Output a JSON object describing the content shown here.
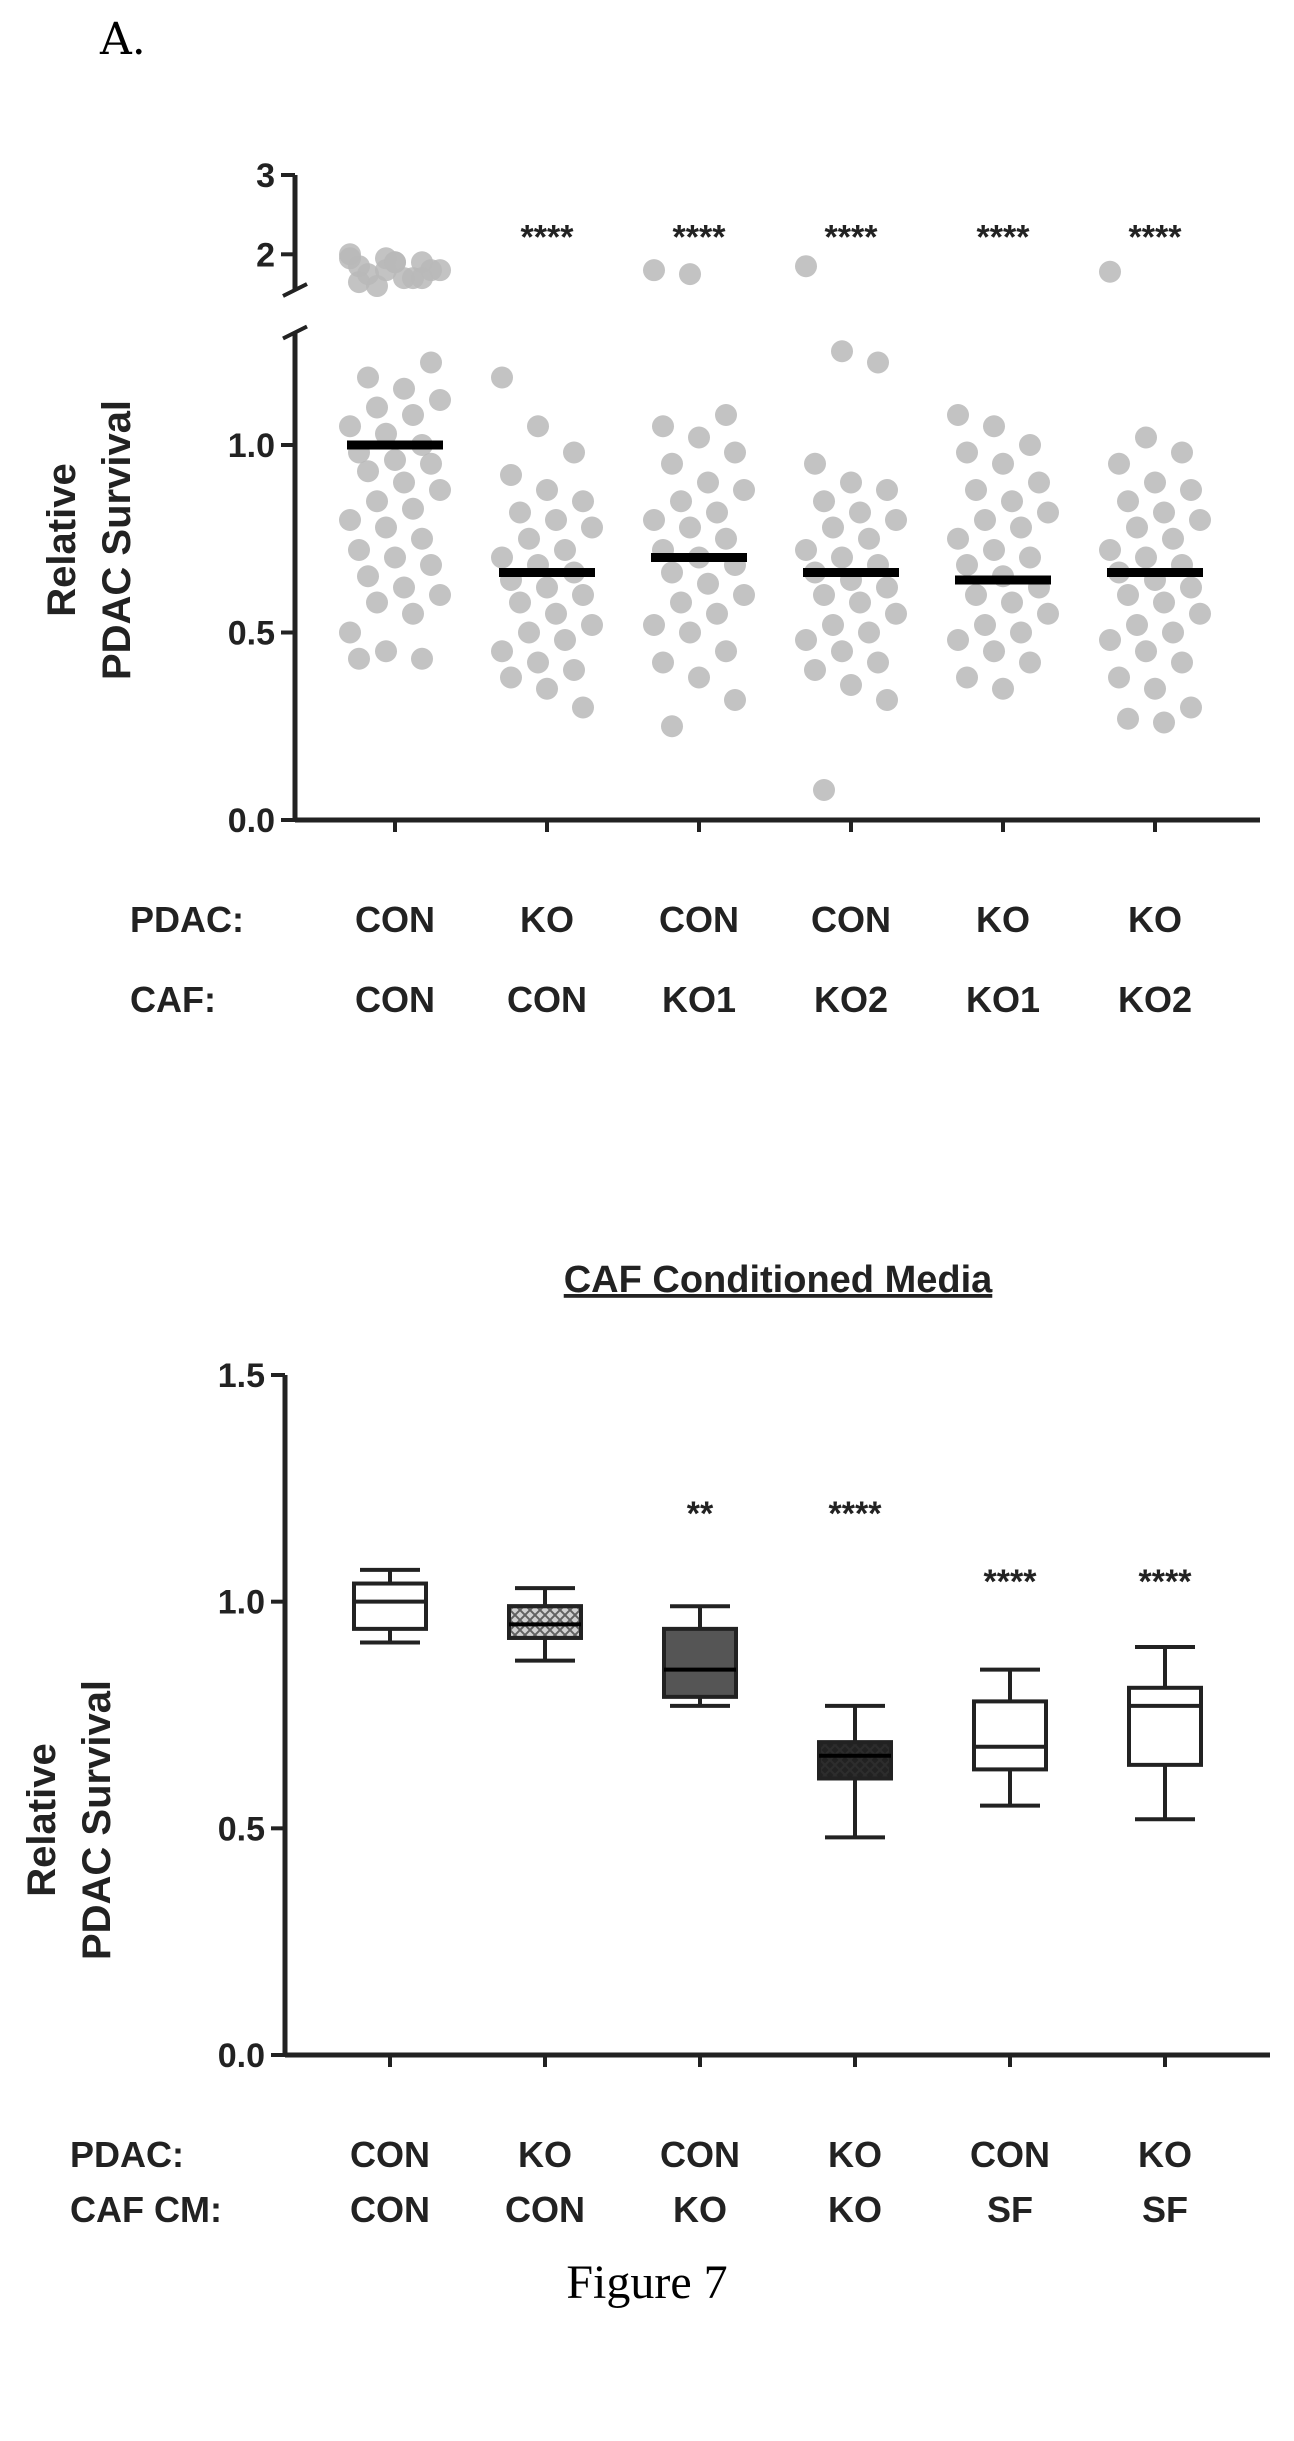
{
  "panel_label": "A.",
  "figure_caption": "Figure 7",
  "chart_data": [
    {
      "type": "scatter",
      "title": "",
      "ylabel_lines": [
        "Relative",
        "PDAC Survival"
      ],
      "row_labels": [
        "PDAC:",
        "CAF:"
      ],
      "categories": [
        {
          "PDAC": "CON",
          "CAF": "CON"
        },
        {
          "PDAC": "KO",
          "CAF": "CON"
        },
        {
          "PDAC": "CON",
          "CAF": "KO1"
        },
        {
          "PDAC": "CON",
          "CAF": "KO2"
        },
        {
          "PDAC": "KO",
          "CAF": "KO1"
        },
        {
          "PDAC": "KO",
          "CAF": "KO2"
        }
      ],
      "ylim": [
        0,
        3
      ],
      "y_axis_break": [
        1.3,
        1.55
      ],
      "yticks_lower": [
        "0.0",
        "0.5",
        "1.0"
      ],
      "yticks_upper": [
        "2",
        "3"
      ],
      "means": [
        1.0,
        0.66,
        0.7,
        0.66,
        0.64,
        0.66
      ],
      "significance": [
        "",
        "****",
        "****",
        "****",
        "****",
        "****"
      ],
      "points": [
        [
          2.0,
          1.95,
          1.9,
          1.85,
          1.9,
          1.8,
          1.75,
          1.7,
          1.8,
          1.6,
          1.7,
          1.95,
          1.8,
          1.7,
          1.65,
          1.9,
          1.22,
          1.18,
          1.15,
          1.12,
          1.1,
          1.08,
          1.05,
          1.03,
          1.0,
          0.98,
          0.96,
          0.95,
          0.93,
          0.9,
          0.88,
          0.85,
          0.83,
          0.8,
          0.78,
          0.75,
          0.72,
          0.7,
          0.68,
          0.65,
          0.62,
          0.6,
          0.58,
          0.55,
          0.5,
          0.45,
          0.43,
          0.43
        ],
        [
          1.18,
          1.05,
          0.98,
          0.92,
          0.88,
          0.85,
          0.82,
          0.8,
          0.78,
          0.75,
          0.72,
          0.7,
          0.68,
          0.66,
          0.64,
          0.62,
          0.6,
          0.58,
          0.55,
          0.52,
          0.5,
          0.48,
          0.45,
          0.42,
          0.4,
          0.38,
          0.35,
          0.3
        ],
        [
          1.8,
          1.75,
          1.08,
          1.05,
          1.02,
          0.98,
          0.95,
          0.9,
          0.88,
          0.85,
          0.82,
          0.8,
          0.78,
          0.75,
          0.72,
          0.7,
          0.68,
          0.66,
          0.63,
          0.6,
          0.58,
          0.55,
          0.52,
          0.5,
          0.45,
          0.42,
          0.38,
          0.32,
          0.25
        ],
        [
          1.85,
          1.25,
          1.22,
          0.95,
          0.9,
          0.88,
          0.85,
          0.82,
          0.8,
          0.78,
          0.75,
          0.72,
          0.7,
          0.68,
          0.66,
          0.64,
          0.62,
          0.6,
          0.58,
          0.55,
          0.52,
          0.5,
          0.48,
          0.45,
          0.42,
          0.4,
          0.36,
          0.32,
          0.08
        ],
        [
          1.08,
          1.05,
          1.0,
          0.98,
          0.95,
          0.9,
          0.88,
          0.85,
          0.82,
          0.8,
          0.78,
          0.75,
          0.72,
          0.7,
          0.68,
          0.65,
          0.62,
          0.6,
          0.58,
          0.55,
          0.52,
          0.5,
          0.48,
          0.45,
          0.42,
          0.38,
          0.35
        ],
        [
          1.78,
          1.02,
          0.98,
          0.95,
          0.9,
          0.88,
          0.85,
          0.82,
          0.8,
          0.78,
          0.75,
          0.72,
          0.7,
          0.68,
          0.66,
          0.64,
          0.62,
          0.6,
          0.58,
          0.55,
          0.52,
          0.5,
          0.48,
          0.45,
          0.42,
          0.38,
          0.35,
          0.3,
          0.27,
          0.26
        ]
      ],
      "point_color": "#b8b8b8",
      "mean_color": "#000000"
    },
    {
      "type": "box",
      "title": "CAF Conditioned Media",
      "ylabel_lines": [
        "Relative",
        "PDAC Survival"
      ],
      "row_labels": [
        "PDAC:",
        "CAF CM:"
      ],
      "categories": [
        {
          "PDAC": "CON",
          "CAF_CM": "CON"
        },
        {
          "PDAC": "KO",
          "CAF_CM": "CON"
        },
        {
          "PDAC": "CON",
          "CAF_CM": "KO"
        },
        {
          "PDAC": "KO",
          "CAF_CM": "KO"
        },
        {
          "PDAC": "CON",
          "CAF_CM": "SF"
        },
        {
          "PDAC": "KO",
          "CAF_CM": "SF"
        }
      ],
      "ylim": [
        0,
        1.5
      ],
      "yticks": [
        "0.0",
        "0.5",
        "1.0",
        "1.5"
      ],
      "boxes": [
        {
          "min": 0.91,
          "q1": 0.94,
          "median": 1.0,
          "q3": 1.04,
          "max": 1.07,
          "fill": "#ffffff",
          "pattern": ""
        },
        {
          "min": 0.87,
          "q1": 0.92,
          "median": 0.95,
          "q3": 0.99,
          "max": 1.03,
          "fill": "#d0d0d0",
          "pattern": "crosshatch"
        },
        {
          "min": 0.77,
          "q1": 0.79,
          "median": 0.85,
          "q3": 0.94,
          "max": 0.99,
          "fill": "#555555",
          "pattern": ""
        },
        {
          "min": 0.48,
          "q1": 0.61,
          "median": 0.66,
          "q3": 0.69,
          "max": 0.77,
          "fill": "#222222",
          "pattern": "crosshatch"
        },
        {
          "min": 0.55,
          "q1": 0.63,
          "median": 0.68,
          "q3": 0.78,
          "max": 0.85,
          "fill": "#ffffff",
          "pattern": ""
        },
        {
          "min": 0.52,
          "q1": 0.64,
          "median": 0.77,
          "q3": 0.81,
          "max": 0.9,
          "fill": "#ffffff",
          "pattern": ""
        }
      ],
      "significance": [
        "",
        "",
        "**",
        "****",
        "****",
        "****"
      ]
    }
  ]
}
